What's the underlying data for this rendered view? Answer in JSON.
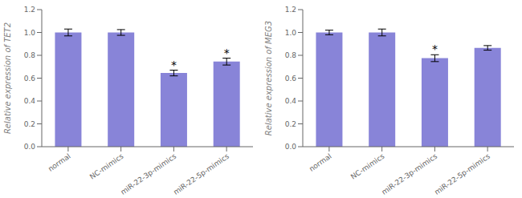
{
  "chart_data": [
    {
      "type": "bar",
      "ylabel": "Relative expression of TET2",
      "categories": [
        "normal",
        "NC-mimics",
        "miR-22-3p-mimics",
        "miR-22-5p-mimics"
      ],
      "values": [
        1.0,
        1.0,
        0.645,
        0.745
      ],
      "errors": [
        0.03,
        0.025,
        0.025,
        0.03
      ],
      "annotations": [
        {
          "category": "miR-22-3p-mimics",
          "text": "*"
        },
        {
          "category": "miR-22-5p-mimics",
          "text": "*"
        }
      ],
      "ylim": [
        0,
        1.2
      ],
      "yticks": [
        {
          "value": 0,
          "label": "0.0"
        },
        0.2,
        0.4,
        0.6,
        0.8,
        {
          "value": 1.0,
          "label": "1.0"
        },
        1.2
      ]
    },
    {
      "type": "bar",
      "ylabel": "Relative expression of  MEG3",
      "categories": [
        "normal",
        "NC-mimics",
        "miR-22-3p-mimics",
        "miR-22-5p-mimics"
      ],
      "values": [
        1.0,
        1.0,
        0.775,
        0.865
      ],
      "errors": [
        0.02,
        0.03,
        0.03,
        0.02
      ],
      "annotations": [
        {
          "category": "miR-22-3p-mimics",
          "text": "*"
        }
      ],
      "ylim": [
        0,
        1.2
      ],
      "yticks": [
        {
          "value": 0,
          "label": "0.0"
        },
        0.2,
        0.4,
        0.6,
        0.8,
        {
          "value": 1.0,
          "label": "1.0"
        },
        1.2
      ]
    }
  ]
}
